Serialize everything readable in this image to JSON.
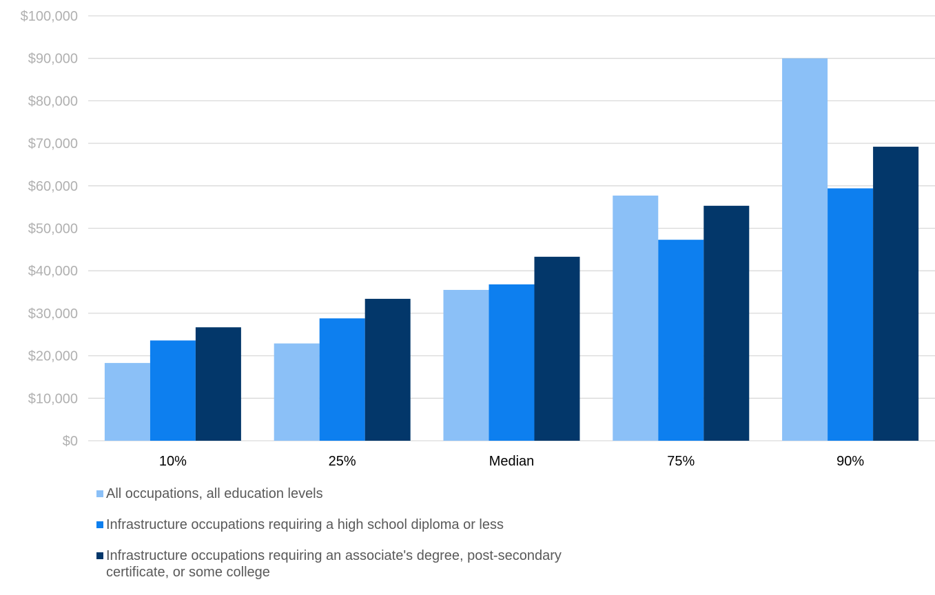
{
  "chart_data": {
    "type": "bar",
    "categories": [
      "10%",
      "25%",
      "Median",
      "75%",
      "90%"
    ],
    "series": [
      {
        "name": "All occupations, all education levels",
        "color": "#8bc0f7",
        "values": [
          18300,
          22900,
          35500,
          57700,
          90000
        ]
      },
      {
        "name": "Infrastructure occupations requiring a high school diploma or less",
        "color": "#0d7fef",
        "values": [
          23600,
          28800,
          36800,
          47300,
          59400
        ]
      },
      {
        "name": "Infrastructure occupations requiring an associate's degree, post-secondary certificate, or some college",
        "color": "#03376a",
        "values": [
          26700,
          33400,
          43300,
          55300,
          69200
        ]
      }
    ],
    "y_ticks": [
      "$0",
      "$10,000",
      "$20,000",
      "$30,000",
      "$40,000",
      "$50,000",
      "$60,000",
      "$70,000",
      "$80,000",
      "$90,000",
      "$100,000"
    ],
    "ylim": [
      0,
      100000
    ],
    "grid": true,
    "legend_position": "bottom",
    "title": "",
    "xlabel": "",
    "ylabel": ""
  }
}
